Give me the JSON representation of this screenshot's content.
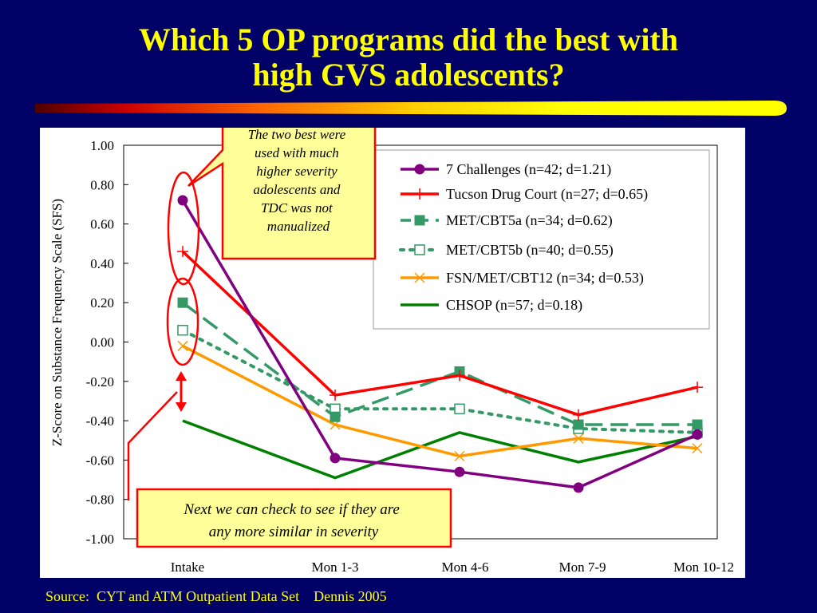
{
  "slide": {
    "title_lines": [
      "Which 5 OP programs did the best with",
      "high GVS adolescents?"
    ],
    "source": "Source:  CYT and ATM Outpatient Data Set    Dennis 2005"
  },
  "callouts": {
    "top": [
      "The two best were",
      "used with much",
      "higher severity",
      "adolescents and",
      "TDC was not",
      "manualized"
    ],
    "bottom": [
      "Next we can check to see if they are",
      "any more similar in severity"
    ]
  },
  "colors": {
    "background": "#000066",
    "title": "#FFFF00",
    "callout_fill": "#FFFF99",
    "callout_border": "#FF0000"
  },
  "chart_data": {
    "type": "line",
    "x": [
      "Intake",
      "Mon 1-3",
      "Mon 4-6",
      "Mon 7-9",
      "Mon 10-12"
    ],
    "ylabel": "Z-Score on Substance Frequency Scale (SFS)",
    "xlabel": "",
    "ylim": [
      -1.0,
      1.0
    ],
    "yticks": [
      "1.00",
      "0.80",
      "0.60",
      "0.40",
      "0.20",
      "0.00",
      "-0.20",
      "-0.40",
      "-0.60",
      "-0.80",
      "-1.00"
    ],
    "legend_position": "top-right",
    "grid": false,
    "series": [
      {
        "name": "7 Challenges (n=42; d=1.21)",
        "values": [
          0.72,
          -0.59,
          -0.66,
          -0.74,
          -0.47
        ],
        "color": "#800080",
        "dash": "solid",
        "marker": "circle"
      },
      {
        "name": "Tucson Drug Court (n=27; d=0.65)",
        "values": [
          0.46,
          -0.27,
          -0.17,
          -0.37,
          -0.23
        ],
        "color": "#FF0000",
        "dash": "solid",
        "marker": "plus"
      },
      {
        "name": "MET/CBT5a (n=34; d=0.62)",
        "values": [
          0.2,
          -0.38,
          -0.15,
          -0.42,
          -0.42
        ],
        "color": "#339966",
        "dash": "long",
        "marker": "square"
      },
      {
        "name": "MET/CBT5b (n=40; d=0.55)",
        "values": [
          0.06,
          -0.34,
          -0.34,
          -0.44,
          -0.46
        ],
        "color": "#339966",
        "dash": "dot",
        "marker": "open-square"
      },
      {
        "name": "FSN/MET/CBT12 (n=34; d=0.53)",
        "values": [
          -0.02,
          -0.42,
          -0.58,
          -0.49,
          -0.54
        ],
        "color": "#FF9900",
        "dash": "solid",
        "marker": "x"
      },
      {
        "name": "CHSOP (n=57; d=0.18)",
        "values": [
          -0.4,
          -0.69,
          -0.46,
          -0.61,
          -0.48
        ],
        "color": "#008000",
        "dash": "solid",
        "marker": "none"
      }
    ]
  }
}
